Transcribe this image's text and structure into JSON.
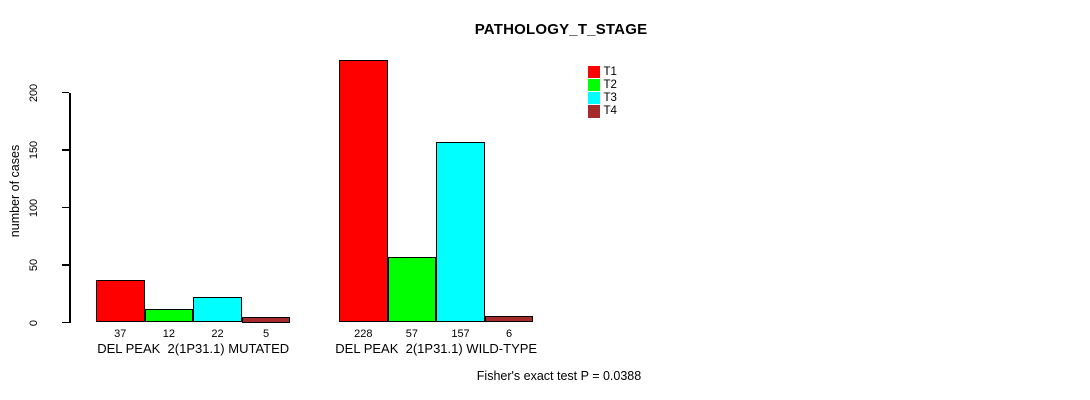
{
  "chart_data": {
    "type": "bar",
    "grouped": true,
    "title": "PATHOLOGY_T_STAGE",
    "ylabel": "number of cases",
    "xlabel": "",
    "categories": [
      "DEL PEAK  2(1P31.1) MUTATED",
      "DEL PEAK  2(1P31.1) WILD-TYPE"
    ],
    "series": [
      {
        "name": "T1",
        "color": "#ff0000",
        "values": [
          37,
          228
        ]
      },
      {
        "name": "T2",
        "color": "#00ff00",
        "values": [
          12,
          57
        ]
      },
      {
        "name": "T3",
        "color": "#00ffff",
        "values": [
          22,
          157
        ]
      },
      {
        "name": "T4",
        "color": "#a52a2a",
        "values": [
          5,
          6
        ]
      }
    ],
    "yticks": [
      0,
      50,
      100,
      150,
      200
    ],
    "ylim": [
      0,
      230
    ],
    "grid": false,
    "legend_position": "top-right",
    "show_values_under_bars": true,
    "annotation": "Fisher's exact test P = 0.0388"
  }
}
